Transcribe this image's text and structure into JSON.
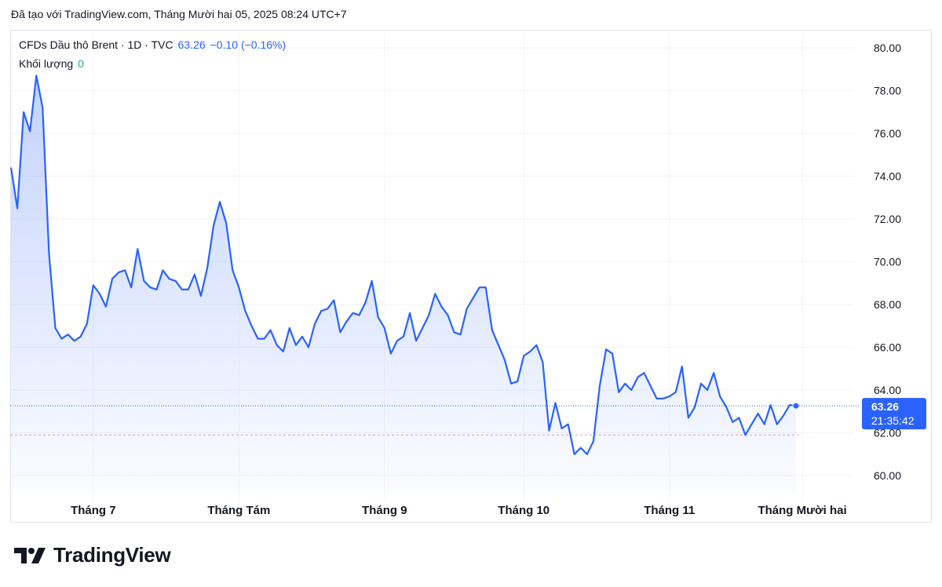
{
  "header": {
    "created_text": "Đã tạo với TradingView.com, Tháng Mười hai 05, 2025 08:24 UTC+7"
  },
  "legend": {
    "symbol": "CFDs Dầu thô Brent · 1D · TVC",
    "last": "63.26",
    "change": "−0.10 (−0.16%)",
    "volume_label": "Khối lượng",
    "volume_value": "0"
  },
  "price_badge": {
    "price": "63.26",
    "countdown": "21:35:42"
  },
  "brand": {
    "name": "TradingView"
  },
  "colors": {
    "line": "#2962ff",
    "fill": "#2962ff",
    "grid": "#f0f3fa",
    "badge": "#2962ff",
    "low_line": "#f23645"
  },
  "chart_data": {
    "type": "area",
    "title": "",
    "xlabel": "",
    "ylabel": "",
    "ylim": [
      59,
      81
    ],
    "y_ticks": [
      "80.00",
      "78.00",
      "76.00",
      "74.00",
      "72.00",
      "70.00",
      "68.00",
      "66.00",
      "64.00",
      "62.00",
      "60.00"
    ],
    "y_tick_values": [
      80,
      78,
      76,
      74,
      72,
      70,
      68,
      66,
      64,
      62,
      60
    ],
    "x_ticks": [
      {
        "label": "Tháng 7",
        "index": 13
      },
      {
        "label": "Tháng Tám",
        "index": 36
      },
      {
        "label": "Tháng 9",
        "index": 59
      },
      {
        "label": "Tháng 10",
        "index": 81
      },
      {
        "label": "Tháng 11",
        "index": 104
      },
      {
        "label": "Tháng Mười hai",
        "index": 125
      }
    ],
    "last_value": 63.26,
    "reference_line": 61.9,
    "series": [
      {
        "values": [
          74.4,
          72.5,
          77.0,
          76.1,
          78.7,
          77.2,
          70.4,
          66.9,
          66.4,
          66.6,
          66.3,
          66.5,
          67.1,
          68.9,
          68.5,
          67.9,
          69.2,
          69.5,
          69.6,
          68.8,
          70.6,
          69.1,
          68.8,
          68.7,
          69.6,
          69.2,
          69.1,
          68.7,
          68.7,
          69.4,
          68.4,
          69.7,
          71.7,
          72.8,
          71.8,
          69.6,
          68.8,
          67.7,
          67.0,
          66.4,
          66.4,
          66.8,
          66.1,
          65.8,
          66.9,
          66.1,
          66.5,
          66.0,
          67.1,
          67.7,
          67.8,
          68.2,
          66.7,
          67.2,
          67.6,
          67.5,
          68.1,
          69.1,
          67.4,
          66.9,
          65.7,
          66.3,
          66.5,
          67.6,
          66.3,
          66.9,
          67.5,
          68.5,
          67.9,
          67.5,
          66.7,
          66.6,
          67.8,
          68.3,
          68.8,
          68.8,
          66.8,
          66.1,
          65.4,
          64.3,
          64.4,
          65.6,
          65.8,
          66.1,
          65.3,
          62.1,
          63.4,
          62.2,
          62.4,
          61.0,
          61.3,
          61.0,
          61.6,
          64.2,
          65.9,
          65.7,
          63.9,
          64.3,
          64.0,
          64.6,
          64.8,
          64.2,
          63.6,
          63.6,
          63.7,
          63.9,
          65.1,
          62.7,
          63.2,
          64.3,
          64.0,
          64.8,
          63.7,
          63.2,
          62.5,
          62.7,
          61.9,
          62.4,
          62.9,
          62.4,
          63.3,
          62.4,
          62.8,
          63.3,
          63.26
        ]
      }
    ]
  }
}
